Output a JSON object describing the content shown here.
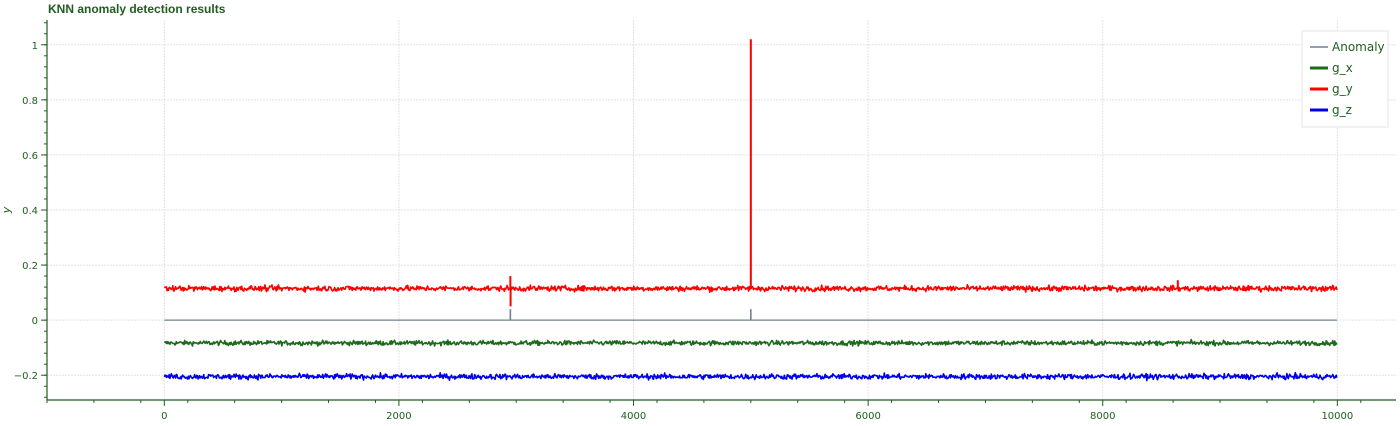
{
  "chart_data": {
    "type": "line",
    "title": "KNN anomaly detection results",
    "xlabel": "",
    "ylabel": "y",
    "xlim": [
      -1000,
      10500
    ],
    "ylim": [
      -0.29,
      1.09
    ],
    "x_ticks": [
      0,
      2000,
      4000,
      6000,
      8000,
      10000
    ],
    "y_ticks": [
      -0.2,
      0,
      0.2,
      0.4,
      0.6,
      0.8,
      1
    ],
    "y_tick_labels": [
      "−0.2",
      "0",
      "0.2",
      "0.4",
      "0.6",
      "0.8",
      "1"
    ],
    "grid": true,
    "legend_position": "top-right",
    "n_points": 10000,
    "series": [
      {
        "name": "Anomaly",
        "color": "#708090",
        "baseline": 0,
        "noise": 0,
        "spikes": [
          {
            "x": 2950,
            "y": 0.04
          },
          {
            "x": 5000,
            "y": 0.04
          }
        ]
      },
      {
        "name": "g_x",
        "color": "#1a6b1a",
        "baseline": -0.083,
        "noise": 0.006,
        "spikes": []
      },
      {
        "name": "g_y",
        "color": "#ff0000",
        "baseline": 0.115,
        "noise": 0.007,
        "spikes": [
          {
            "x": 2950,
            "y": 0.16
          },
          {
            "x": 2952,
            "y": 0.05
          },
          {
            "x": 5000,
            "y": 1.02
          },
          {
            "x": 8640,
            "y": 0.145
          }
        ]
      },
      {
        "name": "g_z",
        "color": "#0000ee",
        "baseline": -0.205,
        "noise": 0.007,
        "spikes": []
      }
    ]
  }
}
